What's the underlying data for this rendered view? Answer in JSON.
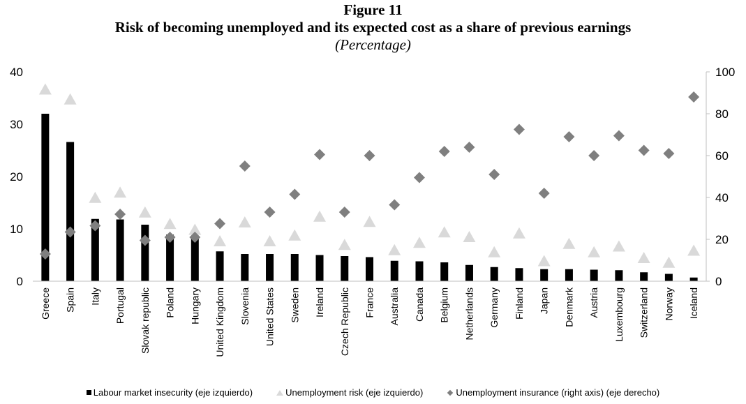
{
  "header": {
    "figure_label": "Figure 11",
    "title": "Risk of becoming unemployed and its expected cost as a share of previous earnings",
    "subtitle": "(Percentage)"
  },
  "chart_data": {
    "type": "bar",
    "title": "Risk of becoming unemployed and its expected cost as a share of previous earnings",
    "subtitle": "(Percentage)",
    "categories": [
      "Greece",
      "Spain",
      "Italy",
      "Portugal",
      "Slovak republic",
      "Poland",
      "Hungary",
      "United Kingdom",
      "Slovenia",
      "United States",
      "Sweden",
      "Ireland",
      "Czech Republic",
      "France",
      "Australia",
      "Canada",
      "Belgium",
      "Netherlands",
      "Germany",
      "Finland",
      "Japan",
      "Denmark",
      "Austria",
      "Luxembourg",
      "Switzerland",
      "Norway",
      "Iceland"
    ],
    "left_axis": {
      "ylim": [
        0,
        40
      ],
      "ticks": [
        0,
        10,
        20,
        30,
        40
      ]
    },
    "right_axis": {
      "ylim": [
        0,
        100
      ],
      "ticks": [
        0,
        20,
        40,
        60,
        80,
        100
      ]
    },
    "series": [
      {
        "name": "Labour market insecurity (eje izquierdo)",
        "type": "bar",
        "axis": "left",
        "color": "#000000",
        "values": [
          32.0,
          26.6,
          11.9,
          11.8,
          10.8,
          8.9,
          8.3,
          5.7,
          5.2,
          5.2,
          5.2,
          5.0,
          4.8,
          4.6,
          3.9,
          3.8,
          3.6,
          3.1,
          2.7,
          2.5,
          2.3,
          2.3,
          2.2,
          2.1,
          1.7,
          1.4,
          0.7
        ]
      },
      {
        "name": "Unemployment risk (eje izquierdo)",
        "type": "triangle",
        "axis": "left",
        "color": "#d9d9d9",
        "values": [
          36.6,
          34.7,
          15.9,
          16.9,
          13.1,
          10.9,
          9.8,
          7.6,
          11.2,
          7.6,
          8.7,
          12.3,
          6.9,
          11.3,
          5.9,
          7.3,
          9.3,
          8.4,
          5.5,
          9.1,
          3.8,
          7.1,
          5.5,
          6.6,
          4.4,
          3.5,
          5.8
        ]
      },
      {
        "name": "Unemployment insurance (right axis) (eje derecho)",
        "type": "diamond",
        "axis": "right",
        "color": "#7f7f7f",
        "values": [
          13,
          23.5,
          26.5,
          32,
          19.5,
          21,
          21,
          27.5,
          55,
          33,
          41.5,
          60.5,
          33,
          60,
          36.5,
          49.5,
          62,
          64,
          51,
          72.5,
          42,
          69,
          60,
          69.5,
          62.5,
          61,
          88
        ]
      }
    ],
    "grid": false,
    "legend_position": "bottom"
  }
}
